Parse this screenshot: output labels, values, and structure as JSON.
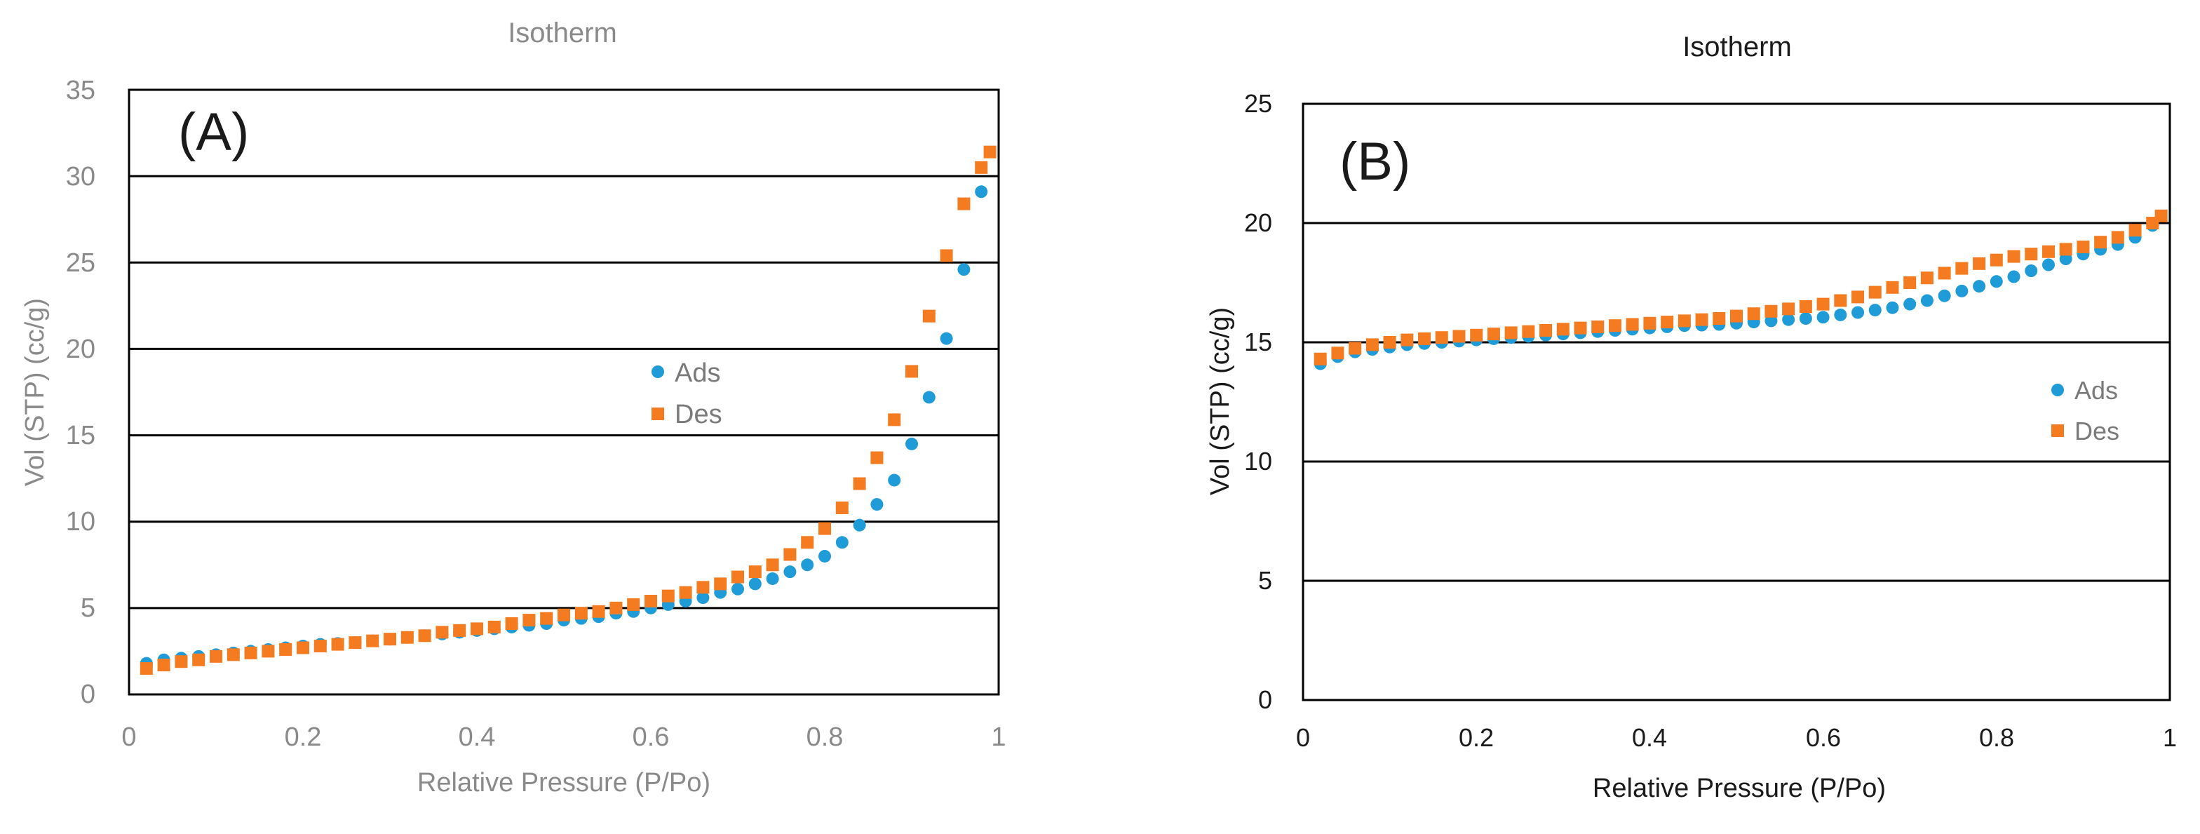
{
  "chart_data": [
    {
      "id": "A",
      "type": "scatter",
      "title": "Isotherm",
      "panel_label": "(A)",
      "xlabel": "Relative Pressure (P/Po)",
      "ylabel": "Vol (STP) (cc/g)",
      "xlim": [
        0,
        1
      ],
      "ylim": [
        0,
        35
      ],
      "xticks": [
        0,
        0.2,
        0.4,
        0.6,
        0.8,
        1
      ],
      "xtick_labels": [
        "0",
        "0.2",
        "0.4",
        "0.6",
        "0.8",
        "1"
      ],
      "yticks": [
        0,
        5,
        10,
        15,
        20,
        25,
        30,
        35
      ],
      "ytick_labels": [
        "0",
        "5",
        "10",
        "15",
        "20",
        "25",
        "30",
        "35"
      ],
      "gridlines_y": true,
      "legend_position": "center-right",
      "series": [
        {
          "name": "Ads",
          "marker": "circle",
          "color": "#1f9bd7",
          "x": [
            0.02,
            0.04,
            0.06,
            0.08,
            0.1,
            0.12,
            0.14,
            0.16,
            0.18,
            0.2,
            0.22,
            0.24,
            0.26,
            0.28,
            0.3,
            0.32,
            0.34,
            0.36,
            0.38,
            0.4,
            0.42,
            0.44,
            0.46,
            0.48,
            0.5,
            0.52,
            0.54,
            0.56,
            0.58,
            0.6,
            0.62,
            0.64,
            0.66,
            0.68,
            0.7,
            0.72,
            0.74,
            0.76,
            0.78,
            0.8,
            0.82,
            0.84,
            0.86,
            0.88,
            0.9,
            0.92,
            0.94,
            0.96,
            0.98
          ],
          "y": [
            1.8,
            2.0,
            2.1,
            2.2,
            2.3,
            2.4,
            2.5,
            2.6,
            2.7,
            2.8,
            2.9,
            2.95,
            3.0,
            3.1,
            3.2,
            3.3,
            3.4,
            3.5,
            3.6,
            3.7,
            3.8,
            3.9,
            4.0,
            4.1,
            4.3,
            4.4,
            4.5,
            4.7,
            4.8,
            5.0,
            5.2,
            5.4,
            5.6,
            5.9,
            6.1,
            6.4,
            6.7,
            7.1,
            7.5,
            8.0,
            8.8,
            9.8,
            11.0,
            12.4,
            14.5,
            17.2,
            20.6,
            24.6,
            29.1
          ]
        },
        {
          "name": "Des",
          "marker": "square",
          "color": "#f47b20",
          "x": [
            0.02,
            0.04,
            0.06,
            0.08,
            0.1,
            0.12,
            0.14,
            0.16,
            0.18,
            0.2,
            0.22,
            0.24,
            0.26,
            0.28,
            0.3,
            0.32,
            0.34,
            0.36,
            0.38,
            0.4,
            0.42,
            0.44,
            0.46,
            0.48,
            0.5,
            0.52,
            0.54,
            0.56,
            0.58,
            0.6,
            0.62,
            0.64,
            0.66,
            0.68,
            0.7,
            0.72,
            0.74,
            0.76,
            0.78,
            0.8,
            0.82,
            0.84,
            0.86,
            0.88,
            0.9,
            0.92,
            0.94,
            0.96,
            0.98,
            0.99
          ],
          "y": [
            1.5,
            1.7,
            1.9,
            2.0,
            2.2,
            2.3,
            2.4,
            2.5,
            2.6,
            2.7,
            2.8,
            2.9,
            3.0,
            3.1,
            3.2,
            3.3,
            3.4,
            3.6,
            3.7,
            3.8,
            3.9,
            4.1,
            4.3,
            4.4,
            4.6,
            4.7,
            4.8,
            5.0,
            5.2,
            5.4,
            5.7,
            5.9,
            6.2,
            6.4,
            6.8,
            7.1,
            7.5,
            8.1,
            8.8,
            9.6,
            10.8,
            12.2,
            13.7,
            15.9,
            18.7,
            21.9,
            25.4,
            28.4,
            30.5,
            31.4
          ]
        }
      ]
    },
    {
      "id": "B",
      "type": "scatter",
      "title": "Isotherm",
      "panel_label": "(B)",
      "xlabel": "Relative Pressure (P/Po)",
      "ylabel": "Vol (STP) (cc/g)",
      "xlim": [
        0,
        1
      ],
      "ylim": [
        0,
        25
      ],
      "xticks": [
        0,
        0.2,
        0.4,
        0.6,
        0.8,
        1
      ],
      "xtick_labels": [
        "0",
        "0.2",
        "0.4",
        "0.6",
        "0.8",
        "1"
      ],
      "yticks": [
        0,
        5,
        10,
        15,
        20,
        25
      ],
      "ytick_labels": [
        "0",
        "5",
        "10",
        "15",
        "20",
        "25"
      ],
      "gridlines_y": true,
      "legend_position": "center-right",
      "series": [
        {
          "name": "Ads",
          "marker": "circle",
          "color": "#1f9bd7",
          "x": [
            0.02,
            0.04,
            0.06,
            0.08,
            0.1,
            0.12,
            0.14,
            0.16,
            0.18,
            0.2,
            0.22,
            0.24,
            0.26,
            0.28,
            0.3,
            0.32,
            0.34,
            0.36,
            0.38,
            0.4,
            0.42,
            0.44,
            0.46,
            0.48,
            0.5,
            0.52,
            0.54,
            0.56,
            0.58,
            0.6,
            0.62,
            0.64,
            0.66,
            0.68,
            0.7,
            0.72,
            0.74,
            0.76,
            0.78,
            0.8,
            0.82,
            0.84,
            0.86,
            0.88,
            0.9,
            0.92,
            0.94,
            0.96,
            0.98
          ],
          "y": [
            14.1,
            14.4,
            14.6,
            14.7,
            14.8,
            14.9,
            14.95,
            15.0,
            15.05,
            15.1,
            15.15,
            15.2,
            15.25,
            15.3,
            15.35,
            15.4,
            15.45,
            15.5,
            15.55,
            15.6,
            15.65,
            15.7,
            15.72,
            15.75,
            15.8,
            15.85,
            15.9,
            15.95,
            16.0,
            16.05,
            16.15,
            16.25,
            16.35,
            16.45,
            16.6,
            16.75,
            16.95,
            17.15,
            17.35,
            17.55,
            17.75,
            18.0,
            18.25,
            18.5,
            18.7,
            18.9,
            19.1,
            19.4,
            19.9
          ]
        },
        {
          "name": "Des",
          "marker": "square",
          "color": "#f47b20",
          "x": [
            0.02,
            0.04,
            0.06,
            0.08,
            0.1,
            0.12,
            0.14,
            0.16,
            0.18,
            0.2,
            0.22,
            0.24,
            0.26,
            0.28,
            0.3,
            0.32,
            0.34,
            0.36,
            0.38,
            0.4,
            0.42,
            0.44,
            0.46,
            0.48,
            0.5,
            0.52,
            0.54,
            0.56,
            0.58,
            0.6,
            0.62,
            0.64,
            0.66,
            0.68,
            0.7,
            0.72,
            0.74,
            0.76,
            0.78,
            0.8,
            0.82,
            0.84,
            0.86,
            0.88,
            0.9,
            0.92,
            0.94,
            0.96,
            0.98,
            0.99
          ],
          "y": [
            14.3,
            14.55,
            14.75,
            14.9,
            15.0,
            15.1,
            15.15,
            15.2,
            15.25,
            15.3,
            15.35,
            15.4,
            15.45,
            15.5,
            15.55,
            15.6,
            15.65,
            15.7,
            15.75,
            15.8,
            15.85,
            15.9,
            15.95,
            16.0,
            16.1,
            16.2,
            16.3,
            16.4,
            16.5,
            16.6,
            16.75,
            16.9,
            17.1,
            17.3,
            17.5,
            17.7,
            17.9,
            18.1,
            18.3,
            18.45,
            18.6,
            18.7,
            18.8,
            18.9,
            19.0,
            19.2,
            19.4,
            19.7,
            20.0,
            20.3
          ]
        }
      ]
    }
  ]
}
